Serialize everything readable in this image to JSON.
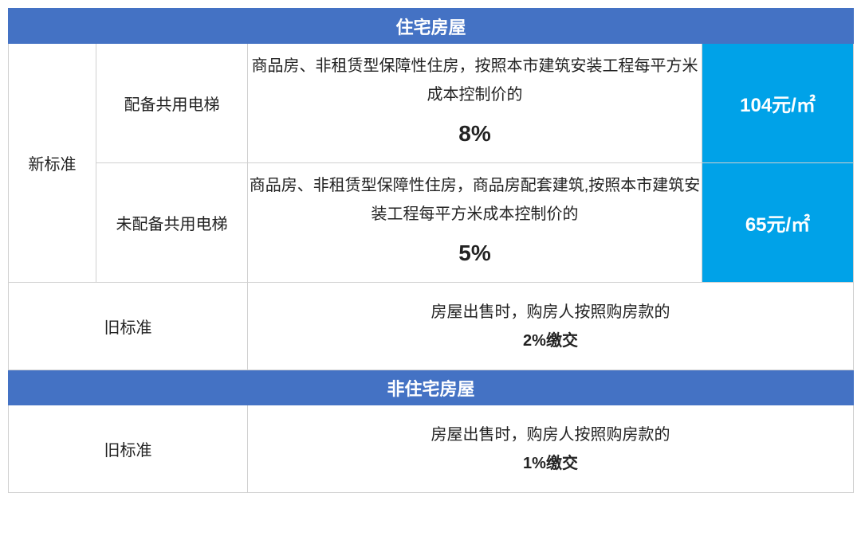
{
  "colors": {
    "header_bg": "#4472c4",
    "header_text": "#ffffff",
    "price_bg": "#00a2e8",
    "price_text": "#ffffff",
    "border": "#d0d0d0",
    "text": "#222222",
    "background": "#ffffff"
  },
  "typography": {
    "header_fontsize": 22,
    "label_fontsize": 20,
    "desc_fontsize": 20,
    "pct_fontsize": 28,
    "price_fontsize": 24
  },
  "section1": {
    "header": "住宅房屋",
    "new_std_label": "新标准",
    "rows": [
      {
        "elevator_label": "配备共用电梯",
        "desc_line": "商品房、非租赁型保障性住房，按照本市建筑安装工程每平方米成本控制价的",
        "pct": "8%",
        "price": "104元/㎡"
      },
      {
        "elevator_label": "未配备共用电梯",
        "desc_line": "商品房、非租赁型保障性住房，商品房配套建筑,按照本市建筑安装工程每平方米成本控制价的",
        "pct": "5%",
        "price": "65元/㎡"
      }
    ],
    "old": {
      "label": "旧标准",
      "desc_line": "房屋出售时，购房人按照购房款的",
      "bold": "2%缴交"
    }
  },
  "section2": {
    "header": "非住宅房屋",
    "old": {
      "label": "旧标准",
      "desc_line": "房屋出售时，购房人按照购房款的",
      "bold": "1%缴交"
    }
  }
}
